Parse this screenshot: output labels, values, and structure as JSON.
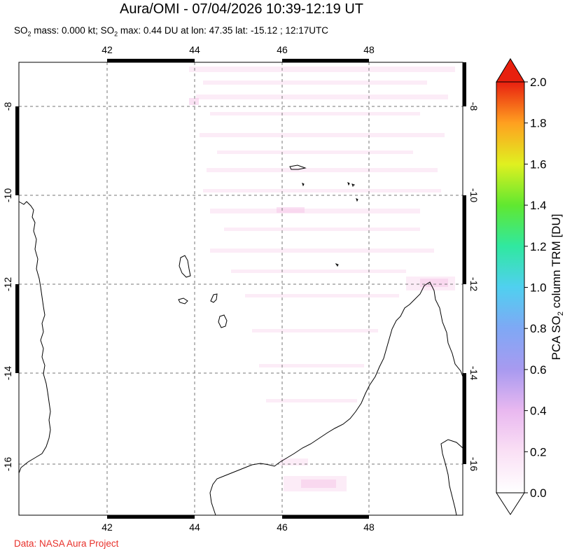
{
  "header": {
    "title": "Aura/OMI - 07/04/2026 10:39-12:19 UT",
    "subtitle_parts": {
      "a1": "SO",
      "a2": "2",
      "a3": " mass: 0.000 kt; SO",
      "a4": "2",
      "a5": " max: 0.44 DU at lon: 47.35 lat: -15.12 ; 12:17UTC"
    }
  },
  "map": {
    "lon_range": [
      40,
      50
    ],
    "lat_range": [
      -17.2,
      -7
    ],
    "lon_ticks": [
      "42",
      "44",
      "46",
      "48"
    ],
    "lat_ticks": [
      "-8",
      "-10",
      "-12",
      "-14",
      "-16"
    ],
    "grid": "dashed"
  },
  "colorbar": {
    "ticks": [
      "2.0",
      "1.8",
      "1.6",
      "1.4",
      "1.2",
      "1.0",
      "0.8",
      "0.6",
      "0.4",
      "0.2",
      "0.0"
    ],
    "label_parts": {
      "l1": "PCA SO",
      "l2": "2",
      "l3": " column TRM [DU]"
    },
    "colors": [
      "#ffffff",
      "#f9d8f3",
      "#c89fe8",
      "#8a8ef2",
      "#4fc8f5",
      "#30e8a8",
      "#4de83a",
      "#d8f020",
      "#ffc020",
      "#ff7010",
      "#e81010"
    ],
    "max_arrow_color": "#e8200e"
  },
  "credit": "Data: NASA Aura Project"
}
